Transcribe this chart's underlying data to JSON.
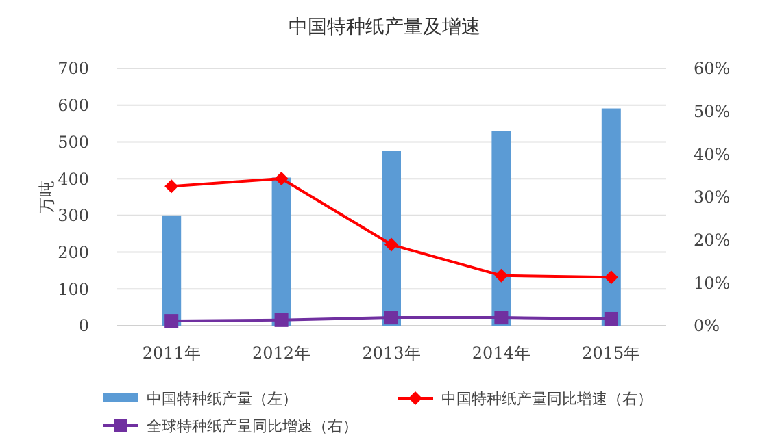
{
  "chart_data": {
    "type": "bar",
    "title": "中国特种纸产量及增速",
    "ylabel": "万吨",
    "categories": [
      "2011年",
      "2012年",
      "2013年",
      "2014年",
      "2015年"
    ],
    "series": [
      {
        "name": "中国特种纸产量（左）",
        "color": "#5b9bd5",
        "values": [
          300,
          403,
          476,
          530,
          591
        ]
      },
      {
        "name": "中国特种纸产量同比增速（右）",
        "type": "line",
        "axis": "y2",
        "color": "#ff0000",
        "marker": "diamond",
        "values": [
          32.5,
          34.3,
          18.9,
          11.7,
          11.3
        ]
      },
      {
        "name": "全球特种纸产量同比增速（右）",
        "type": "line",
        "axis": "y2",
        "color": "#7030a0",
        "marker": "square",
        "values": [
          1.1,
          1.3,
          1.9,
          1.9,
          1.6
        ]
      }
    ],
    "ylim": [
      0,
      700
    ],
    "yticks": [
      0,
      100,
      200,
      300,
      400,
      500,
      600,
      700
    ],
    "y2lim": [
      0,
      60
    ],
    "y2ticks": [
      {
        "value": 0,
        "label": "0%"
      },
      {
        "value": 10,
        "label": "10%"
      },
      {
        "value": 20,
        "label": "20%"
      },
      {
        "value": 30,
        "label": "30%"
      },
      {
        "value": 40,
        "label": "40%"
      },
      {
        "value": 50,
        "label": "50%"
      },
      {
        "value": 60,
        "label": "60%"
      }
    ],
    "grid": "y",
    "legend": "bottom",
    "line_style": "solid"
  }
}
